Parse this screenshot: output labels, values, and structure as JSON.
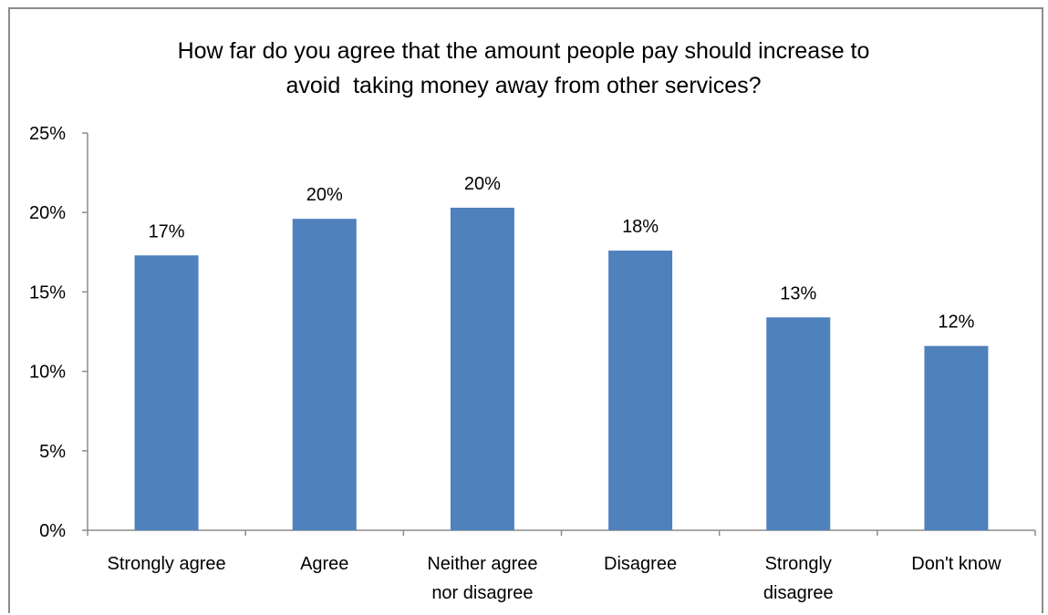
{
  "chart_data": {
    "type": "bar",
    "title_lines": [
      "How far do you agree that the amount people pay should increase to",
      "avoid  taking money away from other services?"
    ],
    "categories": [
      [
        "Strongly agree"
      ],
      [
        "Agree"
      ],
      [
        "Neither agree",
        "nor disagree"
      ],
      [
        "Disagree"
      ],
      [
        "Strongly",
        "disagree"
      ],
      [
        "Don't know"
      ]
    ],
    "values": [
      17.3,
      19.6,
      20.3,
      17.6,
      13.4,
      11.6
    ],
    "data_labels": [
      "17%",
      "20%",
      "20%",
      "18%",
      "13%",
      "12%"
    ],
    "y_ticks": [
      "0%",
      "5%",
      "10%",
      "15%",
      "20%",
      "25%"
    ],
    "ylim": [
      0,
      25
    ],
    "bar_color": "#4f81bd",
    "grid": false,
    "legend": "none"
  }
}
